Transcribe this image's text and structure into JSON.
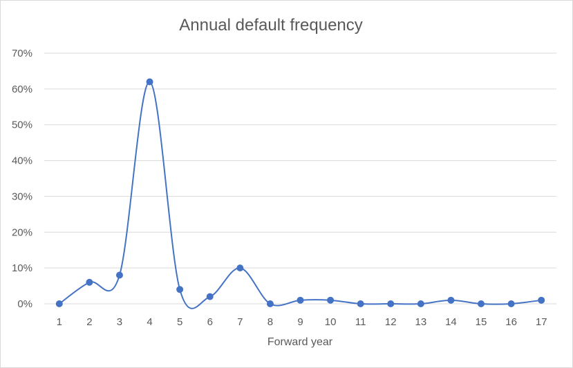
{
  "chart_data": {
    "type": "line",
    "title": "Annual default frequency",
    "xlabel": "Forward year",
    "ylabel": "",
    "categories": [
      "1",
      "2",
      "3",
      "4",
      "5",
      "6",
      "7",
      "8",
      "9",
      "10",
      "11",
      "12",
      "13",
      "14",
      "15",
      "16",
      "17"
    ],
    "series": [
      {
        "values": [
          0,
          0.06,
          0.08,
          0.62,
          0.04,
          0.02,
          0.1,
          0,
          0.01,
          0.01,
          0,
          0,
          0,
          0.01,
          0,
          0,
          0.01
        ],
        "color": "#4472c4"
      }
    ],
    "ylim": [
      0,
      0.7
    ],
    "yticks": [
      0,
      0.1,
      0.2,
      0.3,
      0.4,
      0.5,
      0.6,
      0.7
    ],
    "ytick_labels": [
      "0%",
      "10%",
      "20%",
      "30%",
      "40%",
      "50%",
      "60%",
      "70%"
    ],
    "grid": true,
    "smoothed": true,
    "markers": true,
    "legend": "none",
    "gridline_color": "#d9d9d9",
    "text_color": "#595959"
  }
}
